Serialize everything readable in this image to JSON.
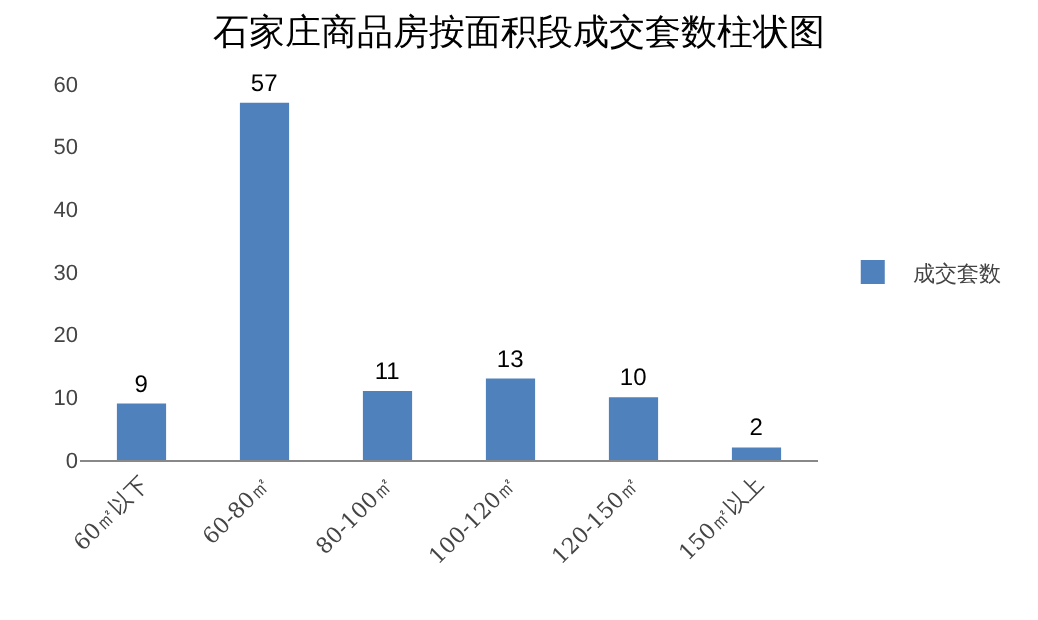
{
  "chart_data": {
    "type": "bar",
    "title": "石家庄商品房按面积段成交套数柱状图",
    "categories": [
      "60㎡以下",
      "60-80㎡",
      "80-100㎡",
      "100-120㎡",
      "120-150㎡",
      "150㎡以上"
    ],
    "series": [
      {
        "name": "成交套数",
        "color": "#4f81bd",
        "values": [
          9,
          57,
          11,
          13,
          10,
          2
        ]
      }
    ],
    "ylim": [
      0,
      60
    ],
    "yticks": [
      0,
      10,
      20,
      30,
      40,
      50,
      60
    ],
    "grid": false,
    "legend": "right",
    "data_labels": true
  }
}
